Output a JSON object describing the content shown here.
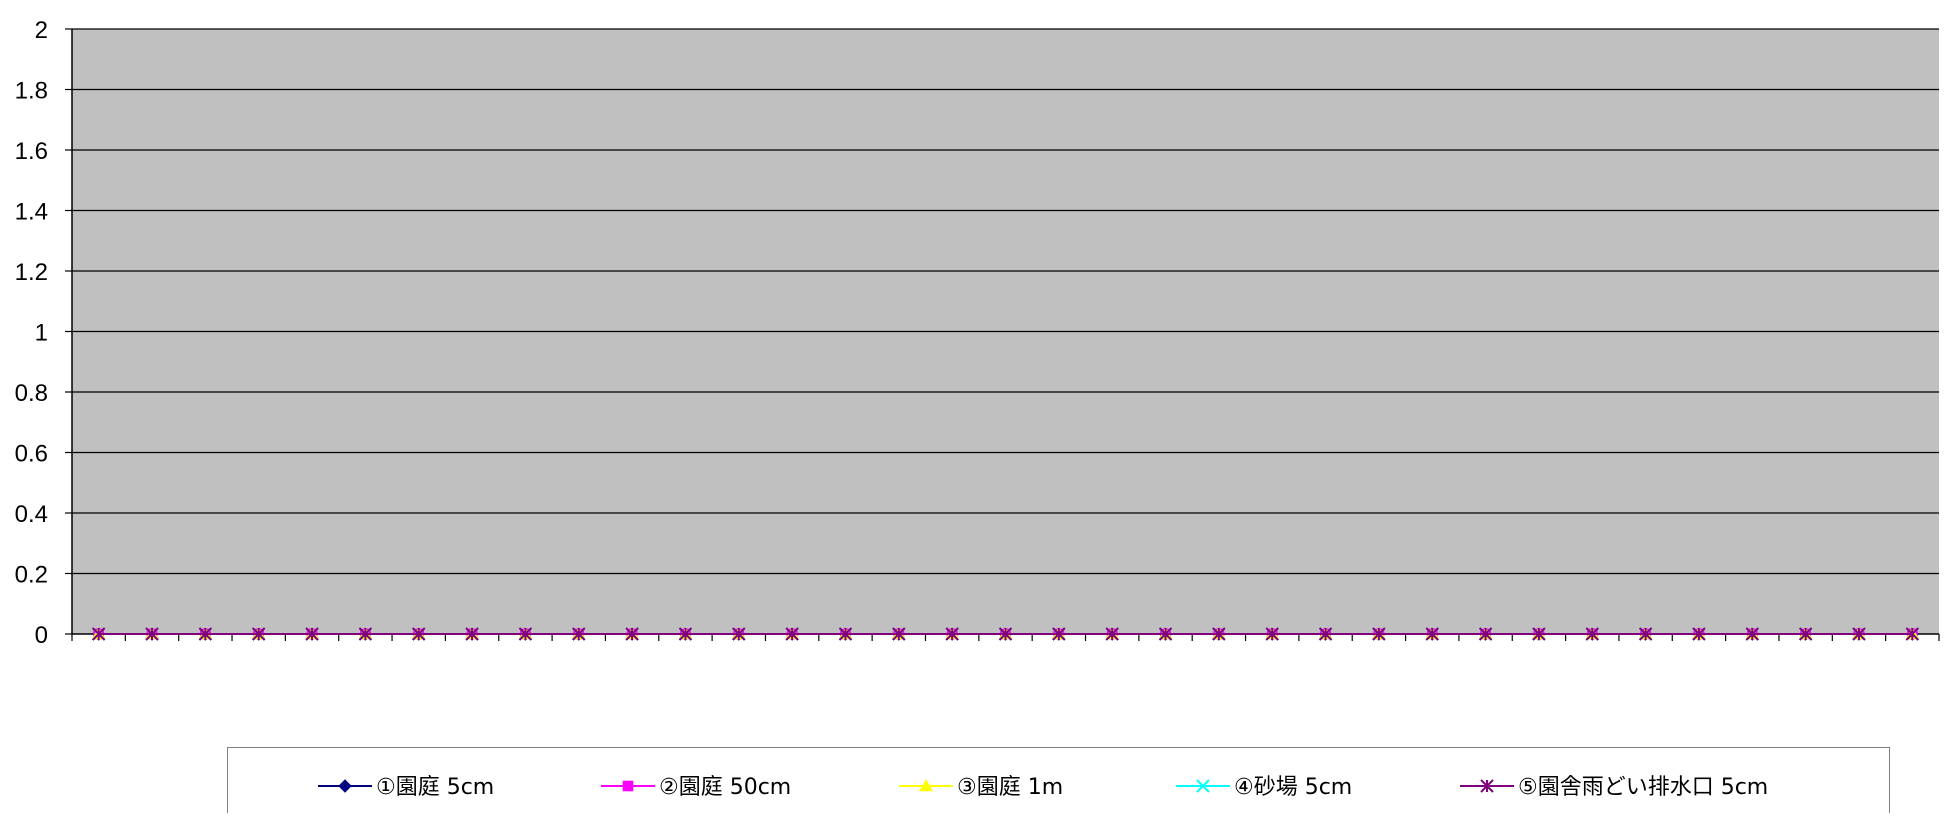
{
  "chart_data": {
    "type": "line",
    "ylim": [
      0,
      2
    ],
    "y_ticks": [
      "0",
      "0.2",
      "0.4",
      "0.6",
      "0.8",
      "1",
      "1.2",
      "1.4",
      "1.6",
      "1.8",
      "2"
    ],
    "x_tick_labels": [],
    "grid": "horizontal",
    "plot_background": "#c0c0c0",
    "legend_position": "bottom",
    "point_count": 35,
    "series": [
      {
        "name": "①園庭 5cm",
        "color": "#000080",
        "marker": "diamond",
        "values": [
          0,
          0,
          0,
          0,
          0,
          0,
          0,
          0,
          0,
          0,
          0,
          0,
          0,
          0,
          0,
          0,
          0,
          0,
          0,
          0,
          0,
          0,
          0,
          0,
          0,
          0,
          0,
          0,
          0,
          0,
          0,
          0,
          0,
          0,
          0
        ]
      },
      {
        "name": "②園庭 50cm",
        "color": "#ff00ff",
        "marker": "square",
        "values": [
          0,
          0,
          0,
          0,
          0,
          0,
          0,
          0,
          0,
          0,
          0,
          0,
          0,
          0,
          0,
          0,
          0,
          0,
          0,
          0,
          0,
          0,
          0,
          0,
          0,
          0,
          0,
          0,
          0,
          0,
          0,
          0,
          0,
          0,
          0
        ]
      },
      {
        "name": "③園庭 1m",
        "color": "#ffff00",
        "marker": "triangle",
        "values": [
          0,
          0,
          0,
          0,
          0,
          0,
          0,
          0,
          0,
          0,
          0,
          0,
          0,
          0,
          0,
          0,
          0,
          0,
          0,
          0,
          0,
          0,
          0,
          0,
          0,
          0,
          0,
          0,
          0,
          0,
          0,
          0,
          0,
          0,
          0
        ]
      },
      {
        "name": "④砂場 5cm",
        "color": "#00ffff",
        "marker": "x",
        "values": [
          0,
          0,
          0,
          0,
          0,
          0,
          0,
          0,
          0,
          0,
          0,
          0,
          0,
          0,
          0,
          0,
          0,
          0,
          0,
          0,
          0,
          0,
          0,
          0,
          0,
          0,
          0,
          0,
          0,
          0,
          0,
          0,
          0,
          0,
          0
        ]
      },
      {
        "name": "⑤園舎雨どい排水口 5cm",
        "color": "#800080",
        "marker": "star",
        "values": [
          0,
          0,
          0,
          0,
          0,
          0,
          0,
          0,
          0,
          0,
          0,
          0,
          0,
          0,
          0,
          0,
          0,
          0,
          0,
          0,
          0,
          0,
          0,
          0,
          0,
          0,
          0,
          0,
          0,
          0,
          0,
          0,
          0,
          0,
          0
        ]
      }
    ]
  }
}
